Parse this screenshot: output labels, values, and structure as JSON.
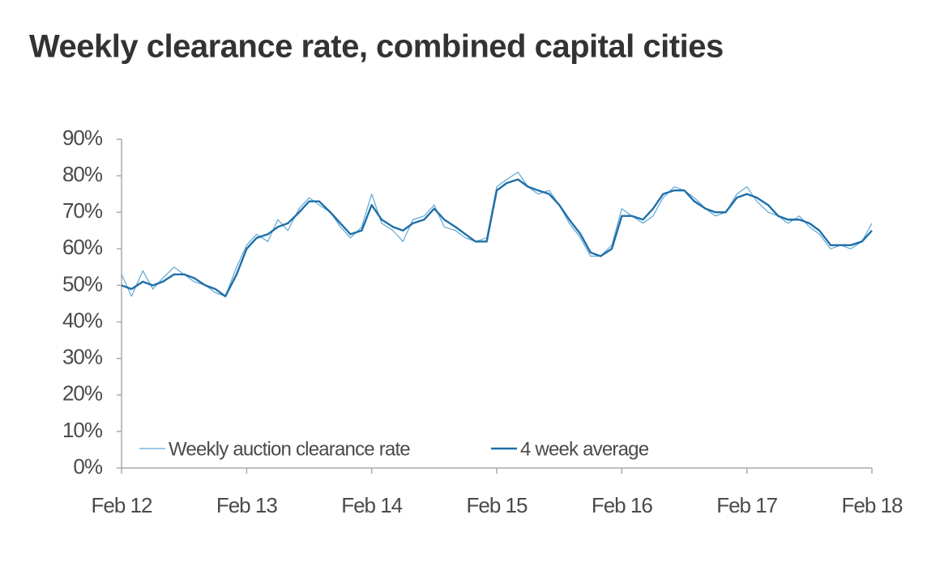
{
  "chart_data": {
    "type": "line",
    "title": "Weekly clearance rate, combined capital cities",
    "x": [
      12,
      12.08,
      12.17,
      12.25,
      12.33,
      12.42,
      12.5,
      12.58,
      12.67,
      12.75,
      12.83,
      12.92,
      13,
      13.08,
      13.17,
      13.25,
      13.33,
      13.42,
      13.5,
      13.58,
      13.67,
      13.75,
      13.83,
      13.92,
      14,
      14.08,
      14.17,
      14.25,
      14.33,
      14.42,
      14.5,
      14.58,
      14.67,
      14.75,
      14.83,
      14.92,
      15,
      15.08,
      15.17,
      15.25,
      15.33,
      15.42,
      15.5,
      15.58,
      15.67,
      15.75,
      15.83,
      15.92,
      16,
      16.08,
      16.17,
      16.25,
      16.33,
      16.42,
      16.5,
      16.58,
      16.67,
      16.75,
      16.83,
      16.92,
      17,
      17.08,
      17.17,
      17.25,
      17.33,
      17.42,
      17.5,
      17.58,
      17.67,
      17.75,
      17.83,
      17.92,
      18
    ],
    "series": [
      {
        "name": "Weekly auction clearance rate",
        "color": "#5fa8d6",
        "width": 1.2,
        "values": [
          53,
          47,
          54,
          49,
          52,
          55,
          53,
          51,
          50,
          48,
          47,
          55,
          61,
          64,
          62,
          68,
          65,
          71,
          74,
          72,
          70,
          66,
          63,
          66,
          75,
          67,
          65,
          62,
          68,
          69,
          72,
          66,
          65,
          63,
          62,
          63,
          77,
          79,
          81,
          77,
          75,
          76,
          72,
          67,
          63,
          58,
          58,
          61,
          71,
          69,
          67,
          69,
          74,
          77,
          76,
          74,
          71,
          69,
          70,
          75,
          77,
          73,
          70,
          69,
          67,
          69,
          66,
          64,
          60,
          61,
          60,
          62,
          67
        ]
      },
      {
        "name": "4 week average",
        "color": "#1f6fa8",
        "width": 2.4,
        "values": [
          50,
          49,
          51,
          50,
          51,
          53,
          53,
          52,
          50,
          49,
          47,
          53,
          60,
          63,
          64,
          66,
          67,
          70,
          73,
          73,
          70,
          67,
          64,
          65,
          72,
          68,
          66,
          65,
          67,
          68,
          71,
          68,
          66,
          64,
          62,
          62,
          76,
          78,
          79,
          77,
          76,
          75,
          72,
          68,
          64,
          59,
          58,
          60,
          69,
          69,
          68,
          71,
          75,
          76,
          76,
          73,
          71,
          70,
          70,
          74,
          75,
          74,
          72,
          69,
          68,
          68,
          67,
          65,
          61,
          61,
          61,
          62,
          65
        ]
      }
    ],
    "xlim": [
      12,
      18
    ],
    "xticks": [
      {
        "value": 12,
        "label": "Feb 12"
      },
      {
        "value": 13,
        "label": "Feb 13"
      },
      {
        "value": 14,
        "label": "Feb 14"
      },
      {
        "value": 15,
        "label": "Feb 15"
      },
      {
        "value": 16,
        "label": "Feb 16"
      },
      {
        "value": 17,
        "label": "Feb 17"
      },
      {
        "value": 18,
        "label": "Feb 18"
      }
    ],
    "ylim": [
      0,
      90
    ],
    "yticks": [
      {
        "value": 0,
        "label": "0%"
      },
      {
        "value": 10,
        "label": "10%"
      },
      {
        "value": 20,
        "label": "20%"
      },
      {
        "value": 30,
        "label": "30%"
      },
      {
        "value": 40,
        "label": "40%"
      },
      {
        "value": 50,
        "label": "50%"
      },
      {
        "value": 60,
        "label": "60%"
      },
      {
        "value": 70,
        "label": "70%"
      },
      {
        "value": 80,
        "label": "80%"
      },
      {
        "value": 90,
        "label": "90%"
      }
    ],
    "grid": false
  }
}
